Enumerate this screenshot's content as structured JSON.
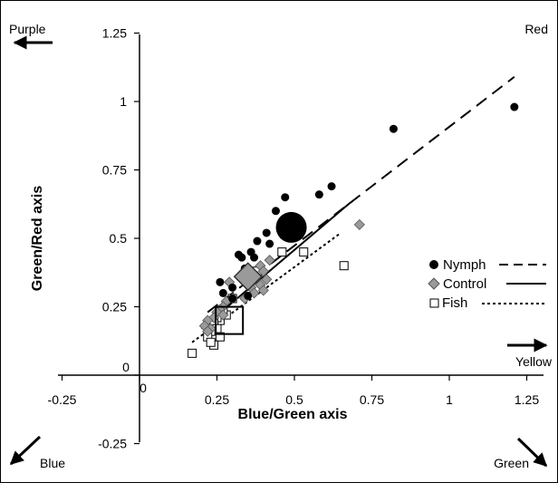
{
  "chart_data": {
    "type": "scatter",
    "xlabel": "Blue/Green axis",
    "ylabel": "Green/Red axis",
    "xlim": [
      -0.25,
      1.25
    ],
    "ylim": [
      -0.25,
      1.25
    ],
    "x_ticks": [
      "-0.25",
      "0",
      "0.25",
      "0.5",
      "0.75",
      "1",
      "1.25"
    ],
    "y_ticks": [
      "-0.25",
      "0",
      "0.25",
      "0.5",
      "0.75",
      "1",
      "1.25"
    ],
    "corner_labels": {
      "top_left": "Purple",
      "top_right": "Red",
      "right": "Yellow",
      "bottom_left": "Blue",
      "bottom_right": "Green"
    },
    "legend": [
      "Nymph",
      "Control",
      "Fish"
    ],
    "series": [
      {
        "name": "Nymph",
        "marker": "filled-circle",
        "color": "#000000",
        "points": [
          [
            1.21,
            0.98
          ],
          [
            0.82,
            0.9
          ],
          [
            0.62,
            0.69
          ],
          [
            0.58,
            0.66
          ],
          [
            0.47,
            0.65
          ],
          [
            0.44,
            0.6
          ],
          [
            0.41,
            0.52
          ],
          [
            0.38,
            0.49
          ],
          [
            0.42,
            0.48
          ],
          [
            0.36,
            0.45
          ],
          [
            0.32,
            0.44
          ],
          [
            0.33,
            0.43
          ],
          [
            0.26,
            0.34
          ],
          [
            0.37,
            0.43
          ],
          [
            0.34,
            0.39
          ],
          [
            0.36,
            0.37
          ],
          [
            0.34,
            0.34
          ],
          [
            0.3,
            0.32
          ],
          [
            0.27,
            0.3
          ],
          [
            0.35,
            0.29
          ],
          [
            0.3,
            0.28
          ]
        ],
        "mean": [
          0.49,
          0.54
        ],
        "trend": [
          [
            0.22,
            0.23
          ],
          [
            1.21,
            1.09
          ]
        ],
        "trend_style": "dashed"
      },
      {
        "name": "Control",
        "marker": "diamond",
        "color": "#9a9a9a",
        "points": [
          [
            0.71,
            0.55
          ],
          [
            0.42,
            0.42
          ],
          [
            0.39,
            0.4
          ],
          [
            0.4,
            0.38
          ],
          [
            0.37,
            0.37
          ],
          [
            0.38,
            0.36
          ],
          [
            0.41,
            0.35
          ],
          [
            0.35,
            0.34
          ],
          [
            0.39,
            0.33
          ],
          [
            0.36,
            0.32
          ],
          [
            0.4,
            0.31
          ],
          [
            0.37,
            0.3
          ],
          [
            0.34,
            0.28
          ],
          [
            0.29,
            0.34
          ],
          [
            0.3,
            0.28
          ],
          [
            0.28,
            0.27
          ],
          [
            0.27,
            0.25
          ],
          [
            0.26,
            0.24
          ],
          [
            0.25,
            0.23
          ],
          [
            0.27,
            0.22
          ],
          [
            0.24,
            0.21
          ],
          [
            0.22,
            0.2
          ],
          [
            0.21,
            0.18
          ],
          [
            0.23,
            0.17
          ],
          [
            0.22,
            0.16
          ]
        ],
        "mean": [
          0.35,
          0.36
        ],
        "trend": [
          [
            0.2,
            0.17
          ],
          [
            0.68,
            0.63
          ]
        ],
        "trend_style": "solid"
      },
      {
        "name": "Fish",
        "marker": "open-square",
        "color": "#000000",
        "points": [
          [
            0.66,
            0.4
          ],
          [
            0.53,
            0.45
          ],
          [
            0.46,
            0.45
          ],
          [
            0.38,
            0.38
          ],
          [
            0.3,
            0.28
          ],
          [
            0.28,
            0.22
          ],
          [
            0.27,
            0.24
          ],
          [
            0.26,
            0.2
          ],
          [
            0.25,
            0.21
          ],
          [
            0.24,
            0.19
          ],
          [
            0.25,
            0.17
          ],
          [
            0.23,
            0.16
          ],
          [
            0.22,
            0.14
          ],
          [
            0.26,
            0.14
          ],
          [
            0.24,
            0.11
          ],
          [
            0.23,
            0.12
          ],
          [
            0.17,
            0.08
          ]
        ],
        "mean": [
          0.29,
          0.2
        ],
        "trend": [
          [
            0.17,
            0.12
          ],
          [
            0.65,
            0.52
          ]
        ],
        "trend_style": "dotted"
      }
    ]
  }
}
